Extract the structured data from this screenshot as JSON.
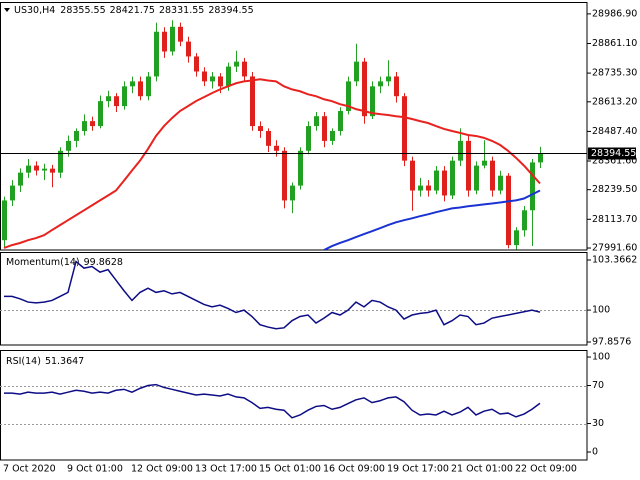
{
  "chart_data": [
    {
      "type": "candlestick",
      "symbol": "US30,H4",
      "categories": [
        "7 Oct 2020",
        null,
        null,
        null,
        null,
        null,
        null,
        null,
        "9 Oct 01:00",
        null,
        null,
        null,
        null,
        null,
        null,
        null,
        "12 Oct 09:00",
        null,
        null,
        null,
        null,
        null,
        null,
        null,
        "13 Oct 17:00",
        null,
        null,
        null,
        null,
        null,
        null,
        null,
        "15 Oct 01:00",
        null,
        null,
        null,
        null,
        null,
        null,
        null,
        "16 Oct 09:00",
        null,
        null,
        null,
        null,
        null,
        null,
        null,
        "19 Oct 17:00",
        null,
        null,
        null,
        null,
        null,
        null,
        null,
        "21 Oct 01:00",
        null,
        null,
        null,
        null,
        null,
        null,
        null,
        "22 Oct 09:00",
        null,
        null,
        null
      ],
      "open": [
        28025,
        28194,
        28257,
        28312,
        28342,
        28321,
        28329,
        28312,
        28405,
        28447,
        28489,
        28531,
        28510,
        28616,
        28637,
        28595,
        28679,
        28700,
        28637,
        28721,
        28911,
        28827,
        28932,
        28869,
        28806,
        28742,
        28700,
        28721,
        28679,
        28763,
        28784,
        28721,
        28510,
        28489,
        28426,
        28405,
        28194,
        28257,
        28405,
        28510,
        28552,
        28447,
        28489,
        28574,
        28700,
        28784,
        28552,
        28679,
        28700,
        28721,
        28637,
        28363,
        28236,
        28257,
        28236,
        28321,
        28215,
        28363,
        28447,
        28236,
        28342,
        28363,
        28236,
        28299,
        28004,
        28067,
        28152,
        28355.55
      ],
      "high": [
        28210,
        28280,
        28330,
        28370,
        28360,
        28350,
        28345,
        28420,
        28470,
        28500,
        28560,
        28550,
        28640,
        28660,
        28650,
        28700,
        28720,
        28720,
        28740,
        28950,
        28930,
        28960,
        28950,
        28890,
        28820,
        28760,
        28740,
        28735,
        28780,
        28830,
        28800,
        28740,
        28530,
        28500,
        28450,
        28420,
        28270,
        28420,
        28530,
        28570,
        28570,
        28500,
        28590,
        28720,
        28860,
        28800,
        28700,
        28720,
        28790,
        28740,
        28650,
        28380,
        28290,
        28280,
        28340,
        28340,
        28380,
        28500,
        28470,
        28360,
        28450,
        28380,
        28320,
        28310,
        28080,
        28170,
        28370,
        28421.75
      ],
      "low": [
        27995,
        28170,
        28230,
        28290,
        28300,
        28280,
        28250,
        28290,
        28380,
        28420,
        28470,
        28490,
        28500,
        28590,
        28570,
        28580,
        28650,
        28620,
        28620,
        28700,
        28800,
        28810,
        28850,
        28780,
        28720,
        28680,
        28670,
        28650,
        28660,
        28740,
        28700,
        28490,
        28460,
        28400,
        28380,
        28160,
        28140,
        28240,
        28390,
        28490,
        28420,
        28430,
        28470,
        28560,
        28680,
        28520,
        28540,
        28650,
        28680,
        28610,
        28340,
        28150,
        28210,
        28210,
        28220,
        28190,
        28200,
        28340,
        28210,
        28220,
        28330,
        28210,
        28220,
        27990,
        27985,
        28040,
        28000,
        28331.55
      ],
      "close": [
        28194,
        28257,
        28312,
        28342,
        28321,
        28329,
        28312,
        28405,
        28447,
        28489,
        28531,
        28510,
        28616,
        28637,
        28595,
        28679,
        28700,
        28637,
        28721,
        28911,
        28827,
        28932,
        28869,
        28806,
        28742,
        28700,
        28721,
        28679,
        28763,
        28784,
        28721,
        28510,
        28489,
        28426,
        28405,
        28194,
        28257,
        28405,
        28510,
        28552,
        28447,
        28489,
        28574,
        28700,
        28784,
        28552,
        28679,
        28700,
        28721,
        28637,
        28363,
        28236,
        28257,
        28236,
        28321,
        28215,
        28363,
        28447,
        28236,
        28342,
        28363,
        28236,
        28299,
        28004,
        28067,
        28152,
        28355.55,
        28394.55
      ],
      "up_color": "#22a022",
      "down_color": "#e0201c",
      "series": [
        {
          "color": "#e8231f",
          "values": [
            27992,
            28004,
            28013,
            28025,
            28034,
            28046,
            28068,
            28089,
            28110,
            28131,
            28152,
            28173,
            28194,
            28215,
            28236,
            28278,
            28321,
            28363,
            28413,
            28468,
            28510,
            28544,
            28574,
            28595,
            28616,
            28633,
            28650,
            28666,
            28679,
            28692,
            28700,
            28704,
            28709,
            28704,
            28700,
            28679,
            28666,
            28658,
            28645,
            28637,
            28624,
            28616,
            28603,
            28595,
            28582,
            28574,
            28565,
            28561,
            28557,
            28552,
            28548,
            28540,
            28531,
            28523,
            28510,
            28498,
            28489,
            28481,
            28472,
            28468,
            28460,
            28447,
            28430,
            28405,
            28375,
            28342,
            28304,
            28266
          ]
        },
        {
          "color": "#1c33d4",
          "values": [
            null,
            null,
            null,
            null,
            null,
            null,
            null,
            null,
            null,
            null,
            null,
            null,
            null,
            null,
            null,
            null,
            null,
            null,
            null,
            null,
            null,
            null,
            null,
            null,
            null,
            null,
            null,
            null,
            null,
            null,
            null,
            null,
            null,
            null,
            null,
            null,
            null,
            null,
            null,
            null,
            27983,
            28000,
            28013,
            28025,
            28038,
            28051,
            28063,
            28076,
            28089,
            28101,
            28110,
            28118,
            28127,
            28135,
            28144,
            28152,
            28160,
            28164,
            28169,
            28173,
            28177,
            28181,
            28185,
            28190,
            28194,
            28202,
            28219,
            28236
          ]
        }
      ],
      "ylim": [
        27983.2,
        29037.5
      ],
      "yticks": [
        {
          "value": 27991.6,
          "label": "27991.60"
        },
        {
          "value": 28113.7,
          "label": "28113.70"
        },
        {
          "value": 28239.5,
          "label": "28239.50"
        },
        {
          "value": 28361.6,
          "label": "28361.60"
        },
        {
          "value": 28487.4,
          "label": "28487.40"
        },
        {
          "value": 28613.2,
          "label": "28613.20"
        },
        {
          "value": 28735.3,
          "label": "28735.30"
        },
        {
          "value": 28861.1,
          "label": "28861.10"
        },
        {
          "value": 28986.9,
          "label": "28986.90"
        }
      ],
      "last_price_line": true
    },
    {
      "type": "line",
      "title": "Momentum(14)",
      "series": [
        {
          "color": "#0d0d85",
          "values": [
            100.92,
            100.92,
            100.76,
            100.54,
            100.49,
            100.54,
            100.65,
            100.92,
            101.19,
            103.26,
            102.82,
            102.93,
            102.55,
            102.72,
            102.01,
            101.3,
            100.65,
            101.19,
            101.47,
            101.19,
            101.3,
            101.09,
            101.19,
            100.92,
            100.65,
            100.38,
            100.22,
            100.33,
            100.11,
            99.84,
            100,
            99.57,
            99.02,
            98.86,
            98.75,
            98.81,
            99.29,
            99.57,
            99.67,
            99.13,
            99.46,
            99.84,
            99.67,
            100,
            100.54,
            100.22,
            100.65,
            100.54,
            100.22,
            100,
            99.4,
            99.67,
            99.78,
            99.84,
            100,
            99.02,
            99.29,
            99.67,
            99.57,
            99.02,
            99.13,
            99.46,
            99.57,
            99.67,
            99.78,
            99.89,
            100,
            99.8628
          ]
        }
      ],
      "ylim": [
        97.656,
        103.904
      ],
      "yticks": [
        97.8576,
        100,
        103.3662
      ],
      "levels": [
        100
      ]
    },
    {
      "type": "line",
      "title": "RSI(14)",
      "series": [
        {
          "color": "#0d0d85",
          "values": [
            62,
            62,
            61,
            63,
            62,
            62,
            63,
            61,
            63,
            65,
            64,
            62,
            63,
            62,
            65,
            66,
            63,
            67,
            70,
            71,
            68,
            66,
            64,
            62,
            60,
            61,
            60,
            59,
            61,
            58,
            57,
            52,
            46,
            47,
            45,
            44,
            36,
            39,
            44,
            48,
            49,
            45,
            47,
            51,
            55,
            57,
            52,
            54,
            57,
            58,
            53,
            44,
            39,
            40,
            39,
            43,
            39,
            42,
            47,
            39,
            43,
            45,
            40,
            41,
            37,
            40,
            45,
            51.3647
          ]
        }
      ],
      "ylim": [
        -8.4,
        107.4
      ],
      "yticks": [
        0,
        30,
        70,
        100
      ],
      "levels": [
        30,
        70
      ]
    }
  ]
}
